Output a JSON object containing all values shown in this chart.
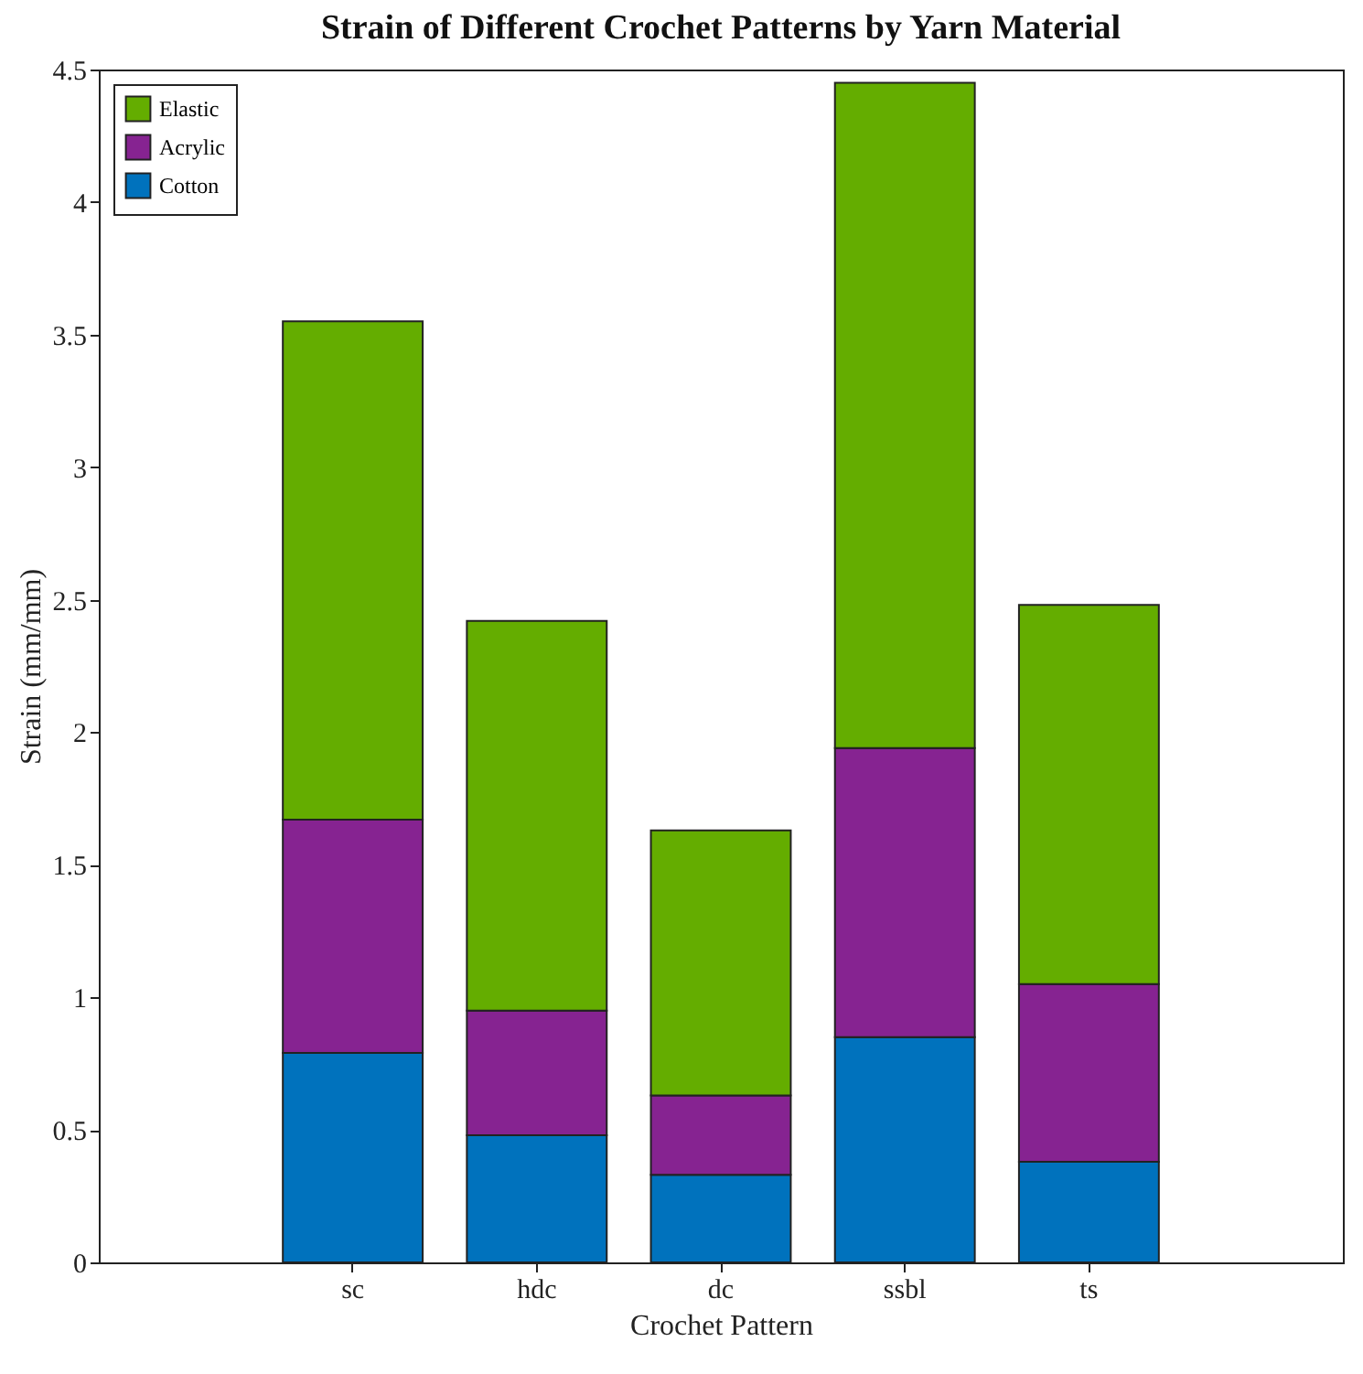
{
  "chart_data": {
    "type": "bar",
    "stacked": true,
    "title": "Strain of Different Crochet Patterns by Yarn Material",
    "xlabel": "Crochet Pattern",
    "ylabel": "Strain (mm/mm)",
    "categories": [
      "sc",
      "hdc",
      "dc",
      "ssbl",
      "ts"
    ],
    "series": [
      {
        "name": "Cotton",
        "color": "#0072bd",
        "values": [
          0.79,
          0.48,
          0.33,
          0.85,
          0.38
        ]
      },
      {
        "name": "Acrylic",
        "color": "#862391",
        "values": [
          0.88,
          0.47,
          0.3,
          1.09,
          0.67
        ]
      },
      {
        "name": "Elastic",
        "color": "#64ad00",
        "values": [
          1.88,
          1.47,
          1.0,
          2.51,
          1.43
        ]
      }
    ],
    "ylim": [
      0,
      4.5
    ],
    "yticks": [
      0,
      0.5,
      1,
      1.5,
      2,
      2.5,
      3,
      3.5,
      4,
      4.5
    ],
    "grid": false,
    "legend": "top left"
  }
}
